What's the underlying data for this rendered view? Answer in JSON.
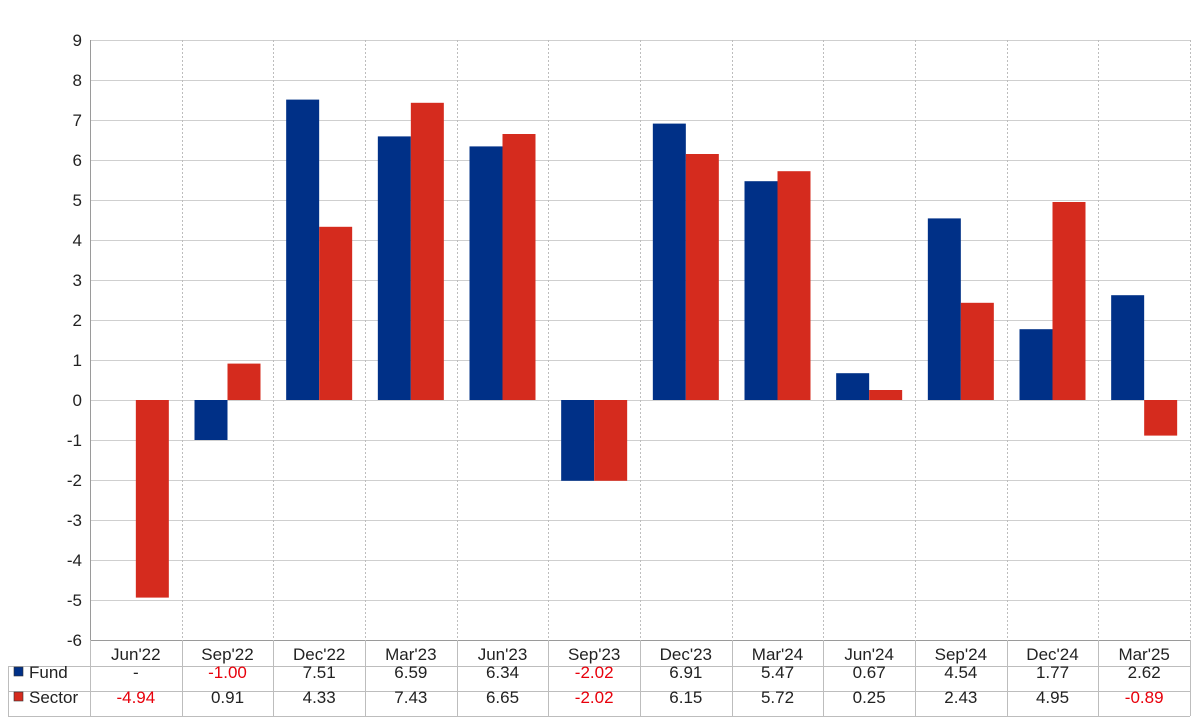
{
  "chart_data": {
    "type": "bar",
    "categories": [
      "Jun'22",
      "Sep'22",
      "Dec'22",
      "Mar'23",
      "Jun'23",
      "Sep'23",
      "Dec'23",
      "Mar'24",
      "Jun'24",
      "Sep'24",
      "Dec'24",
      "Mar'25"
    ],
    "series": [
      {
        "name": "Fund",
        "color": "#003087",
        "values": [
          null,
          -1.0,
          7.51,
          6.59,
          6.34,
          -2.02,
          6.91,
          5.47,
          0.67,
          4.54,
          1.77,
          2.62
        ],
        "labels": [
          "-",
          "-1.00",
          "7.51",
          "6.59",
          "6.34",
          "-2.02",
          "6.91",
          "5.47",
          "0.67",
          "4.54",
          "1.77",
          "2.62"
        ]
      },
      {
        "name": "Sector",
        "color": "#d52b1e",
        "values": [
          -4.94,
          0.91,
          4.33,
          7.43,
          6.65,
          -2.02,
          6.15,
          5.72,
          0.25,
          2.43,
          4.95,
          -0.89
        ],
        "labels": [
          "-4.94",
          "0.91",
          "4.33",
          "7.43",
          "6.65",
          "-2.02",
          "6.15",
          "5.72",
          "0.25",
          "2.43",
          "4.95",
          "-0.89"
        ]
      }
    ],
    "ylim": [
      -6,
      9
    ],
    "yticks": [
      "9",
      "8",
      "7",
      "6",
      "5",
      "4",
      "3",
      "2",
      "1",
      "0",
      "-1",
      "-2",
      "-3",
      "-4",
      "-5",
      "-6"
    ],
    "grid": true,
    "negative_label_color": "#e8000b",
    "legend_placement": "data-table-left",
    "title": "",
    "xlabel": "",
    "ylabel": ""
  }
}
